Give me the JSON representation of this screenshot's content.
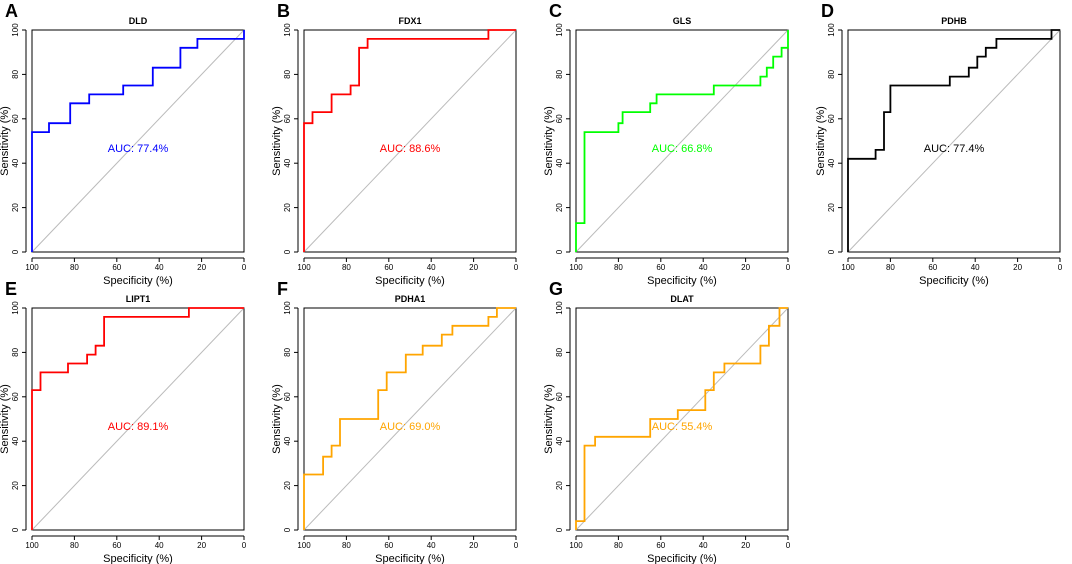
{
  "chart_data": [
    {
      "type": "line",
      "letter": "A",
      "title": "DLD",
      "xlabel": "Specificity (%)",
      "ylabel": "Sensitivity (%)",
      "xlim": [
        100,
        0
      ],
      "ylim": [
        0,
        100
      ],
      "xticks": [
        "100",
        "80",
        "60",
        "40",
        "20",
        "0"
      ],
      "yticks": [
        "0",
        "20",
        "40",
        "60",
        "80",
        "100"
      ],
      "color": "#0000ff",
      "auc_label": "AUC: 77.4%",
      "series": [
        {
          "name": "ROC",
          "x": [
            100,
            100,
            92,
            92,
            82,
            82,
            73,
            73,
            57,
            57,
            43,
            43,
            30,
            30,
            22,
            22,
            0,
            0
          ],
          "y": [
            0,
            54,
            54,
            58,
            58,
            67,
            67,
            71,
            71,
            75,
            75,
            83,
            83,
            92,
            92,
            96,
            96,
            100
          ]
        }
      ]
    },
    {
      "type": "line",
      "letter": "B",
      "title": "FDX1",
      "xlabel": "Specificity (%)",
      "ylabel": "Sensitivity (%)",
      "xlim": [
        100,
        0
      ],
      "ylim": [
        0,
        100
      ],
      "xticks": [
        "100",
        "80",
        "60",
        "40",
        "20",
        "0"
      ],
      "yticks": [
        "0",
        "20",
        "40",
        "60",
        "80",
        "100"
      ],
      "color": "#ff0000",
      "auc_label": "AUC: 88.6%",
      "series": [
        {
          "name": "ROC",
          "x": [
            100,
            100,
            96,
            96,
            87,
            87,
            78,
            78,
            74,
            74,
            70,
            70,
            13,
            13,
            0
          ],
          "y": [
            0,
            58,
            58,
            63,
            63,
            71,
            71,
            75,
            75,
            92,
            92,
            96,
            96,
            100,
            100
          ]
        }
      ]
    },
    {
      "type": "line",
      "letter": "C",
      "title": "GLS",
      "xlabel": "Specificity (%)",
      "ylabel": "Sensitivity (%)",
      "xlim": [
        100,
        0
      ],
      "ylim": [
        0,
        100
      ],
      "xticks": [
        "100",
        "80",
        "60",
        "40",
        "20",
        "0"
      ],
      "yticks": [
        "0",
        "20",
        "40",
        "60",
        "80",
        "100"
      ],
      "color": "#00ff00",
      "auc_label": "AUC: 66.8%",
      "series": [
        {
          "name": "ROC",
          "x": [
            100,
            100,
            96,
            96,
            80,
            80,
            78,
            78,
            65,
            65,
            62,
            62,
            35,
            35,
            13,
            13,
            10,
            10,
            7,
            7,
            3,
            3,
            0,
            0
          ],
          "y": [
            0,
            13,
            13,
            54,
            54,
            58,
            58,
            63,
            63,
            67,
            67,
            71,
            71,
            75,
            75,
            79,
            79,
            83,
            83,
            88,
            88,
            92,
            92,
            100
          ]
        }
      ]
    },
    {
      "type": "line",
      "letter": "D",
      "title": "PDHB",
      "xlabel": "Specificity (%)",
      "ylabel": "Sensitivity (%)",
      "xlim": [
        100,
        0
      ],
      "ylim": [
        0,
        100
      ],
      "xticks": [
        "100",
        "80",
        "60",
        "40",
        "20",
        "0"
      ],
      "yticks": [
        "0",
        "20",
        "40",
        "60",
        "80",
        "100"
      ],
      "color": "#000000",
      "auc_label": "AUC: 77.4%",
      "series": [
        {
          "name": "ROC",
          "x": [
            100,
            100,
            87,
            87,
            83,
            83,
            80,
            80,
            52,
            52,
            43,
            43,
            39,
            39,
            35,
            35,
            30,
            30,
            4,
            4,
            0
          ],
          "y": [
            0,
            42,
            42,
            46,
            46,
            63,
            63,
            75,
            75,
            79,
            79,
            83,
            83,
            88,
            88,
            92,
            92,
            96,
            96,
            100,
            100
          ]
        }
      ]
    },
    {
      "type": "line",
      "letter": "E",
      "title": "LIPT1",
      "xlabel": "Specificity (%)",
      "ylabel": "Sensitivity (%)",
      "xlim": [
        100,
        0
      ],
      "ylim": [
        0,
        100
      ],
      "xticks": [
        "100",
        "80",
        "60",
        "40",
        "20",
        "0"
      ],
      "yticks": [
        "0",
        "20",
        "40",
        "60",
        "80",
        "100"
      ],
      "color": "#ff0000",
      "auc_label": "AUC: 89.1%",
      "series": [
        {
          "name": "ROC",
          "x": [
            100,
            100,
            96,
            96,
            83,
            83,
            74,
            74,
            70,
            70,
            66,
            66,
            26,
            26,
            0
          ],
          "y": [
            0,
            63,
            63,
            71,
            71,
            75,
            75,
            79,
            79,
            83,
            83,
            96,
            96,
            100,
            100
          ]
        }
      ]
    },
    {
      "type": "line",
      "letter": "F",
      "title": "PDHA1",
      "xlabel": "Specificity (%)",
      "ylabel": "Sensitivity (%)",
      "xlim": [
        100,
        0
      ],
      "ylim": [
        0,
        100
      ],
      "xticks": [
        "100",
        "80",
        "60",
        "40",
        "20",
        "0"
      ],
      "yticks": [
        "0",
        "20",
        "40",
        "60",
        "80",
        "100"
      ],
      "color": "#ffa500",
      "auc_label": "AUC: 69.0%",
      "series": [
        {
          "name": "ROC",
          "x": [
            100,
            100,
            91,
            91,
            87,
            87,
            83,
            83,
            65,
            65,
            61,
            61,
            52,
            52,
            44,
            44,
            35,
            35,
            30,
            30,
            13,
            13,
            9,
            9,
            0
          ],
          "y": [
            0,
            25,
            25,
            33,
            33,
            38,
            38,
            50,
            50,
            63,
            63,
            71,
            71,
            79,
            79,
            83,
            83,
            88,
            88,
            92,
            92,
            96,
            96,
            100,
            100
          ]
        }
      ]
    },
    {
      "type": "line",
      "letter": "G",
      "title": "DLAT",
      "xlabel": "Specificity (%)",
      "ylabel": "Sensitivity (%)",
      "xlim": [
        100,
        0
      ],
      "ylim": [
        0,
        100
      ],
      "xticks": [
        "100",
        "80",
        "60",
        "40",
        "20",
        "0"
      ],
      "yticks": [
        "0",
        "20",
        "40",
        "60",
        "80",
        "100"
      ],
      "color": "#ffa500",
      "auc_label": "AUC: 55.4%",
      "series": [
        {
          "name": "ROC",
          "x": [
            100,
            100,
            96,
            96,
            91,
            91,
            87,
            87,
            65,
            65,
            52,
            52,
            39,
            39,
            35,
            35,
            30,
            30,
            13,
            13,
            9,
            9,
            4,
            4,
            0
          ],
          "y": [
            0,
            4,
            4,
            38,
            38,
            42,
            42,
            42,
            42,
            50,
            50,
            54,
            54,
            63,
            63,
            71,
            71,
            75,
            75,
            83,
            83,
            92,
            92,
            100,
            100
          ]
        }
      ]
    }
  ]
}
